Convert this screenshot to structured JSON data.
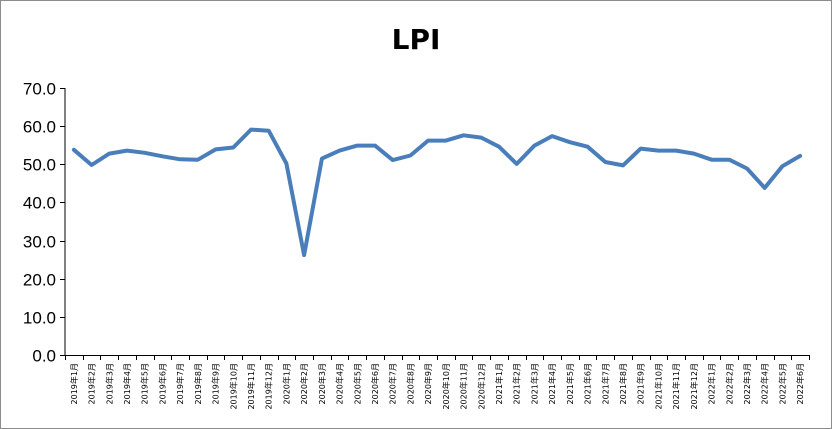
{
  "chart_data": {
    "type": "line",
    "title": "LPI",
    "xlabel": "",
    "ylabel": "",
    "ylim": [
      0,
      70
    ],
    "yticks": [
      "0.0",
      "10.0",
      "20.0",
      "30.0",
      "40.0",
      "50.0",
      "60.0",
      "70.0"
    ],
    "grid": false,
    "legend": "none",
    "line_color": "#4a7ebb",
    "categories": [
      "2019年1月",
      "2019年2月",
      "2019年3月",
      "2019年4月",
      "2019年5月",
      "2019年6月",
      "2019年7月",
      "2019年8月",
      "2019年9月",
      "2019年10月",
      "2019年11月",
      "2019年12月",
      "2020年1月",
      "2020年2月",
      "2020年3月",
      "2020年4月",
      "2020年5月",
      "2020年6月",
      "2020年7月",
      "2020年8月",
      "2020年9月",
      "2020年10月",
      "2020年11月",
      "2020年12月",
      "2021年1月",
      "2021年2月",
      "2021年3月",
      "2021年4月",
      "2021年5月",
      "2021年6月",
      "2021年7月",
      "2021年8月",
      "2021年9月",
      "2021年10月",
      "2021年11月",
      "2021年12月",
      "2022年1月",
      "2022年2月",
      "2022年3月",
      "2022年4月",
      "2022年5月",
      "2022年6月"
    ],
    "series": [
      {
        "values": [
          53.8,
          49.8,
          52.8,
          53.6,
          53.0,
          52.1,
          51.3,
          51.2,
          53.9,
          54.4,
          59.1,
          58.8,
          50.2,
          26.2,
          51.5,
          53.6,
          54.9,
          54.9,
          51.1,
          52.3,
          56.2,
          56.2,
          57.6,
          57.0,
          54.6,
          50.1,
          54.9,
          57.4,
          55.8,
          54.6,
          50.6,
          49.7,
          54.1,
          53.6,
          53.6,
          52.8,
          51.2,
          51.2,
          48.9,
          43.8,
          49.5,
          52.2
        ]
      }
    ]
  }
}
